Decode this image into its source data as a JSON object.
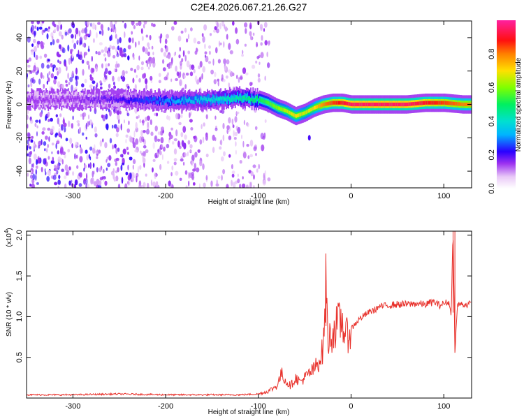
{
  "title": "C2E4.2026.067.21.26.G27",
  "colors": {
    "snr_line": "#e8302a",
    "spectrum_low": "#b469e8",
    "spectrum_mid": "#6200ea",
    "spectrum_ridge_hot": "#ff2020",
    "background": "#ffffff"
  },
  "chart_data": [
    {
      "type": "heatmap",
      "name": "spectrogram",
      "xlabel": "Height of straight line (km)",
      "ylabel": "Frequency (Hz)",
      "xlim": [
        -350,
        130
      ],
      "ylim": [
        -50,
        50
      ],
      "x_ticks": [
        -300,
        -200,
        -100,
        0,
        100
      ],
      "x_tick_labels": [
        "-300",
        "-200",
        "-100",
        "0",
        "100"
      ],
      "y_ticks": [
        -40,
        -20,
        0,
        20,
        40
      ],
      "y_tick_labels": [
        "-40",
        "-20",
        "0",
        "20",
        "40"
      ],
      "colorbar": {
        "label": "Normalized spectral amplitude",
        "range": [
          0,
          1
        ],
        "ticks": [
          0.0,
          0.2,
          0.4,
          0.6,
          0.8
        ],
        "tick_labels": [
          "0.0",
          "0.2",
          "0.4",
          "0.6",
          "0.8"
        ]
      },
      "ridge": {
        "x": [
          -350,
          -300,
          -250,
          -200,
          -150,
          -120,
          -100,
          -90,
          -80,
          -70,
          -60,
          -50,
          -40,
          -30,
          -20,
          -10,
          0,
          20,
          40,
          60,
          80,
          100,
          120,
          130
        ],
        "freq": [
          3,
          3,
          3,
          2,
          3,
          4,
          3,
          1,
          -2,
          -4,
          -7,
          -5,
          -2,
          0,
          1,
          1,
          0,
          0,
          0,
          0,
          1,
          1,
          0,
          0
        ],
        "amplitude": [
          0.15,
          0.15,
          0.2,
          0.3,
          0.4,
          0.45,
          0.5,
          0.55,
          0.6,
          0.65,
          0.7,
          0.65,
          0.7,
          0.8,
          0.85,
          0.9,
          0.95,
          0.95,
          0.95,
          0.95,
          0.9,
          0.85,
          0.8,
          0.8
        ]
      },
      "noise_extent_km": -100
    },
    {
      "type": "line",
      "name": "snr",
      "xlabel": "Height of straight line (km)",
      "ylabel": "SNR (10 * v/v)",
      "scale_label": "(x10",
      "scale_exp": "4",
      "scale_close": ")",
      "xlim": [
        -350,
        130
      ],
      "ylim": [
        0,
        2.05
      ],
      "x_ticks": [
        -300,
        -200,
        -100,
        0,
        100
      ],
      "x_tick_labels": [
        "-300",
        "-200",
        "-100",
        "0",
        "100"
      ],
      "y_ticks": [
        0.5,
        1.0,
        1.5,
        2.0
      ],
      "y_tick_labels": [
        "0.5",
        "1.0",
        "1.5",
        "2.0"
      ],
      "series": [
        {
          "name": "SNR",
          "x": [
            -350,
            -300,
            -250,
            -200,
            -150,
            -120,
            -100,
            -90,
            -80,
            -75,
            -70,
            -65,
            -60,
            -55,
            -50,
            -45,
            -40,
            -35,
            -30,
            -27,
            -25,
            -20,
            -15,
            -10,
            -5,
            0,
            5,
            10,
            15,
            20,
            25,
            30,
            40,
            50,
            60,
            70,
            80,
            85,
            90,
            95,
            100,
            105,
            108,
            110,
            112,
            115,
            120,
            130
          ],
          "y": [
            0.04,
            0.04,
            0.05,
            0.04,
            0.04,
            0.04,
            0.05,
            0.08,
            0.15,
            0.3,
            0.2,
            0.15,
            0.25,
            0.2,
            0.25,
            0.3,
            0.35,
            0.45,
            0.6,
            1.45,
            0.7,
            0.8,
            0.9,
            0.95,
            0.75,
            0.85,
            0.92,
            0.98,
            1.02,
            1.06,
            1.08,
            1.12,
            1.14,
            1.15,
            1.15,
            1.16,
            1.15,
            1.17,
            1.18,
            1.14,
            1.16,
            1.18,
            1.05,
            2.05,
            0.6,
            1.15,
            1.15,
            1.15
          ]
        }
      ]
    }
  ]
}
